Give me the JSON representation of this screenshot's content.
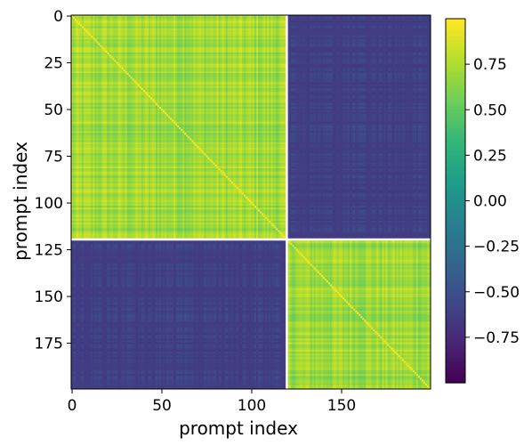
{
  "chart_data": {
    "type": "heatmap",
    "title": "",
    "xlabel": "prompt index",
    "ylabel": "prompt index",
    "n": 200,
    "xlim": [
      0,
      199
    ],
    "ylim": [
      199,
      0
    ],
    "block_boundary_index": 120,
    "block_summary": [
      {
        "rows": [
          0,
          119
        ],
        "cols": [
          0,
          119
        ],
        "typical_value": 0.8
      },
      {
        "rows": [
          0,
          119
        ],
        "cols": [
          120,
          199
        ],
        "typical_value": -0.8
      },
      {
        "rows": [
          120,
          199
        ],
        "cols": [
          0,
          119
        ],
        "typical_value": -0.8
      },
      {
        "rows": [
          120,
          199
        ],
        "cols": [
          120,
          199
        ],
        "typical_value": 0.8
      }
    ],
    "x_ticks": [
      {
        "value": 0,
        "label": "0"
      },
      {
        "value": 50,
        "label": "50"
      },
      {
        "value": 100,
        "label": "100"
      },
      {
        "value": 150,
        "label": "150"
      }
    ],
    "y_ticks": [
      {
        "value": 0,
        "label": "0"
      },
      {
        "value": 25,
        "label": "25"
      },
      {
        "value": 50,
        "label": "50"
      },
      {
        "value": 75,
        "label": "75"
      },
      {
        "value": 100,
        "label": "100"
      },
      {
        "value": 125,
        "label": "125"
      },
      {
        "value": 150,
        "label": "150"
      },
      {
        "value": 175,
        "label": "175"
      }
    ],
    "colorbar": {
      "colormap": "viridis",
      "vmin": -1.0,
      "vmax": 1.0,
      "ticks": [
        {
          "value": 0.75,
          "label": "0.75"
        },
        {
          "value": 0.5,
          "label": "0.50"
        },
        {
          "value": 0.25,
          "label": "0.25"
        },
        {
          "value": 0.0,
          "label": "0.00"
        },
        {
          "value": -0.25,
          "label": "−0.25"
        },
        {
          "value": -0.5,
          "label": "−0.50"
        },
        {
          "value": -0.75,
          "label": "−0.75"
        }
      ]
    },
    "colors": {
      "viridis": [
        "#440154",
        "#482878",
        "#3e4989",
        "#31688e",
        "#26828e",
        "#1f9e89",
        "#35b779",
        "#6ece58",
        "#b5de2b",
        "#fde725"
      ],
      "separator": "#ffffff"
    }
  }
}
